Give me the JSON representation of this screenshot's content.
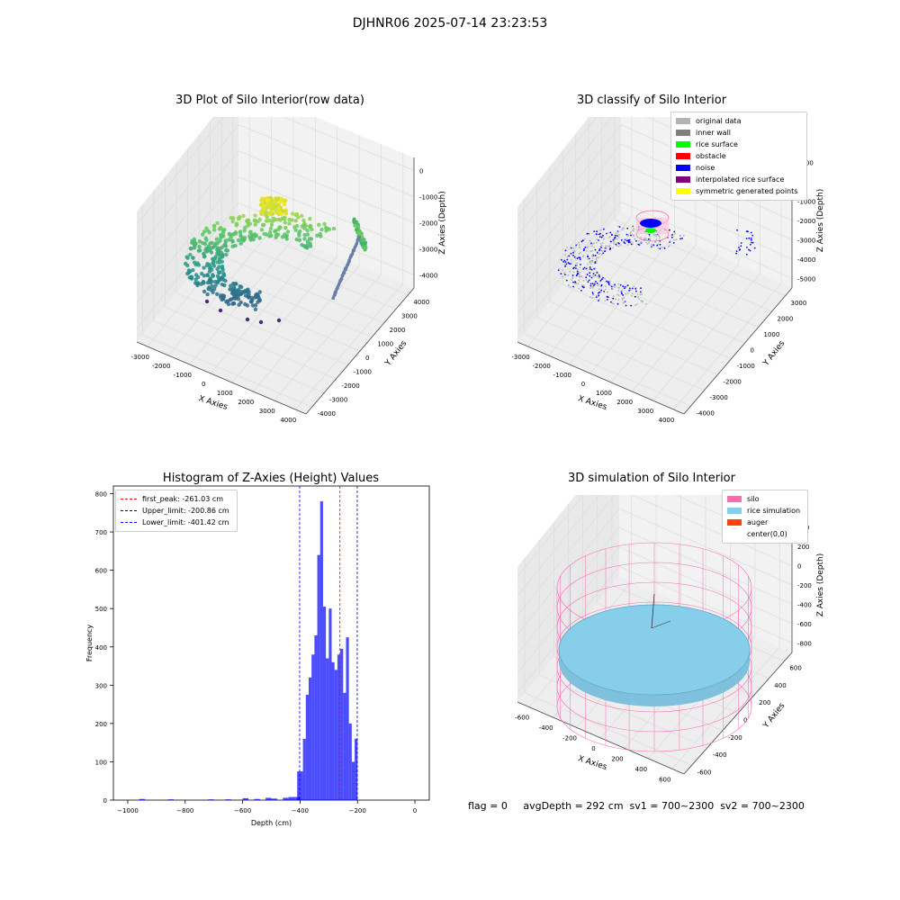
{
  "suptitle": "DJHNR06 2025-07-14 23:23:53",
  "footer": "flag = 0     avgDepth = 292 cm  sv1 = 700~2300  sv2 = 700~2300",
  "chart_data": [
    {
      "type": "scatter",
      "title": "3D Plot of Silo Interior(row data)",
      "xlabel": "X Axies",
      "ylabel": "Y Axies",
      "zlabel": "Z Axies (Depth)",
      "x_ticks": [
        "-3000",
        "-2000",
        "-1000",
        "0",
        "1000",
        "2000",
        "3000",
        "4000"
      ],
      "y_ticks": [
        "-4000",
        "-3000",
        "-2000",
        "-1000",
        "0",
        "1000",
        "2000",
        "3000",
        "4000"
      ],
      "z_ticks": [
        "0",
        "-1000",
        "-2000",
        "-3000",
        "-4000"
      ],
      "colormap": "viridis"
    },
    {
      "type": "scatter",
      "title": "3D classify of Silo Interior",
      "xlabel": "X Axies",
      "ylabel": "Y Axies",
      "zlabel": "Z Axies (Depth)",
      "x_ticks": [
        "-3000",
        "-2000",
        "-1000",
        "0",
        "1000",
        "2000",
        "3000",
        "4000"
      ],
      "y_ticks": [
        "-4000",
        "-3000",
        "-2000",
        "-1000",
        "0",
        "1000",
        "2000",
        "3000"
      ],
      "z_ticks": [
        "1000",
        "0",
        "-1000",
        "-2000",
        "-3000",
        "-4000",
        "-5000"
      ],
      "legend": [
        {
          "label": "original data",
          "color": "#b3b3b3"
        },
        {
          "label": "inner wall",
          "color": "#808080"
        },
        {
          "label": "rice surface",
          "color": "#00ff00"
        },
        {
          "label": "obstacle",
          "color": "#ff0000"
        },
        {
          "label": "noise",
          "color": "#0000ff"
        },
        {
          "label": "interpolated rice surface",
          "color": "#800080"
        },
        {
          "label": "symmetric generated points",
          "color": "#ffff00"
        }
      ]
    },
    {
      "type": "bar",
      "title": "Histogram of Z-Axies (Height) Values",
      "xlabel": "Depth (cm)",
      "ylabel": "Frequency",
      "xlim": [
        -1050,
        50
      ],
      "ylim": [
        0,
        820
      ],
      "x_ticks": [
        -1000,
        -800,
        -600,
        -400,
        -200,
        0
      ],
      "y_ticks": [
        0,
        100,
        200,
        300,
        400,
        500,
        600,
        700,
        800
      ],
      "bar_color": "#0000ff",
      "bin_width": 20,
      "bins": [
        {
          "x": -960,
          "y": 3
        },
        {
          "x": -860,
          "y": 2
        },
        {
          "x": -720,
          "y": 2
        },
        {
          "x": -660,
          "y": 2
        },
        {
          "x": -600,
          "y": 5
        },
        {
          "x": -560,
          "y": 3
        },
        {
          "x": -520,
          "y": 6
        },
        {
          "x": -500,
          "y": 4
        },
        {
          "x": -460,
          "y": 6
        },
        {
          "x": -440,
          "y": 8
        },
        {
          "x": -420,
          "y": 8
        },
        {
          "x": -410,
          "y": 75
        },
        {
          "x": -400,
          "y": 75
        },
        {
          "x": -390,
          "y": 160
        },
        {
          "x": -380,
          "y": 275
        },
        {
          "x": -370,
          "y": 320
        },
        {
          "x": -360,
          "y": 380
        },
        {
          "x": -350,
          "y": 430
        },
        {
          "x": -340,
          "y": 640
        },
        {
          "x": -330,
          "y": 780
        },
        {
          "x": -320,
          "y": 505
        },
        {
          "x": -310,
          "y": 370
        },
        {
          "x": -300,
          "y": 500
        },
        {
          "x": -290,
          "y": 360
        },
        {
          "x": -280,
          "y": 340
        },
        {
          "x": -270,
          "y": 380
        },
        {
          "x": -260,
          "y": 395
        },
        {
          "x": -250,
          "y": 280
        },
        {
          "x": -240,
          "y": 425
        },
        {
          "x": -230,
          "y": 200
        },
        {
          "x": -220,
          "y": 100
        },
        {
          "x": -210,
          "y": 160
        }
      ],
      "lines": [
        {
          "label": "first_peak: -261.03 cm",
          "x": -261.03,
          "color": "#ff0000"
        },
        {
          "label": "Upper_limit: -200.86 cm",
          "x": -200.86,
          "color": "#00008b"
        },
        {
          "label": "Lower_limit: -401.42 cm",
          "x": -401.42,
          "color": "#0000ff"
        }
      ]
    },
    {
      "type": "scatter",
      "title": "3D simulation of Silo Interior",
      "xlabel": "X Axies",
      "ylabel": "Y Axies",
      "zlabel": "Z Axies (Depth)",
      "x_ticks": [
        "-600",
        "-400",
        "-200",
        "0",
        "200",
        "400",
        "600"
      ],
      "y_ticks": [
        "-600",
        "-400",
        "-200",
        "0",
        "200",
        "400",
        "600"
      ],
      "z_ticks": [
        "400",
        "200",
        "0",
        "-200",
        "-400",
        "-600",
        "-800"
      ],
      "legend": [
        {
          "label": "silo",
          "color": "#ff69b4"
        },
        {
          "label": "rice simulation",
          "color": "#87ceeb"
        },
        {
          "label": "auger",
          "color": "#ff4500"
        },
        {
          "label": "center(0,0)",
          "color": "#ffffff"
        }
      ]
    }
  ]
}
